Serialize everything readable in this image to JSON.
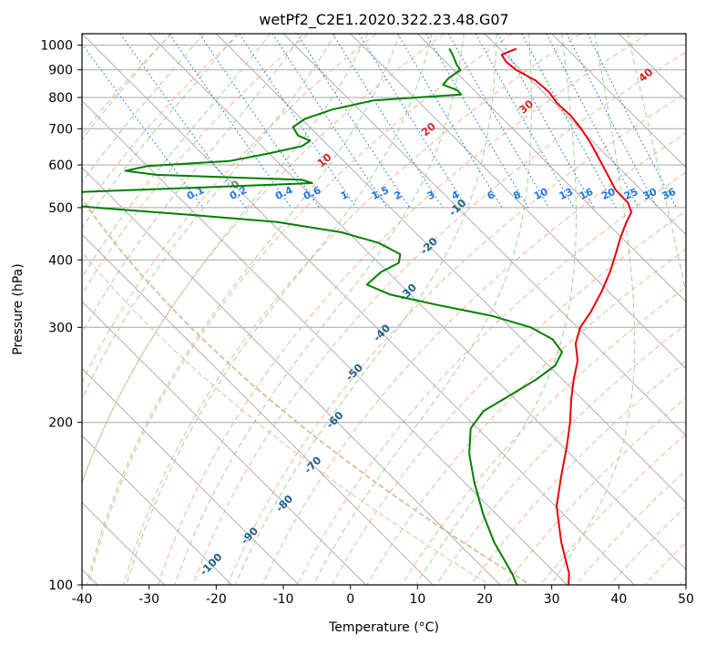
{
  "chart_data": {
    "type": "line",
    "title": "wetPf2_C2E1.2020.322.23.48.G07",
    "xlabel": "Temperature (°C)",
    "ylabel": "Pressure (hPa)",
    "xlim": [
      -40,
      50
    ],
    "ylim": [
      1050,
      100
    ],
    "y_scale": "log",
    "skew_factor": 35,
    "grid": true,
    "x_ticks": [
      -40,
      -30,
      -20,
      -10,
      0,
      10,
      20,
      30,
      40,
      50
    ],
    "y_ticks": [
      1000,
      900,
      800,
      700,
      600,
      500,
      400,
      300,
      200,
      100
    ],
    "colors": {
      "temperature": "#e8000b",
      "dewpoint": "#008000",
      "dry_adiabat": "#f4a582",
      "moist_adiabat": "#8fc98f",
      "mixing_ratio": "#1f77dd",
      "isotherm": "#a9a9a9",
      "saturation": "#d2b48c"
    },
    "series": [
      {
        "key": "temperature",
        "points": [
          [
            985,
            22.5
          ],
          [
            960,
            19.4
          ],
          [
            930,
            19.0
          ],
          [
            900,
            19.3
          ],
          [
            860,
            20.6
          ],
          [
            820,
            20.9
          ],
          [
            780,
            20.4
          ],
          [
            740,
            20.6
          ],
          [
            700,
            20.2
          ],
          [
            660,
            19.5
          ],
          [
            620,
            18.5
          ],
          [
            580,
            17.4
          ],
          [
            540,
            16.2
          ],
          [
            510,
            16.1
          ],
          [
            490,
            15.2
          ],
          [
            470,
            13.0
          ],
          [
            440,
            9.8
          ],
          [
            410,
            6.6
          ],
          [
            380,
            3.1
          ],
          [
            350,
            -1.0
          ],
          [
            320,
            -5.8
          ],
          [
            300,
            -9.6
          ],
          [
            280,
            -12.7
          ],
          [
            260,
            -15.0
          ],
          [
            240,
            -18.4
          ],
          [
            220,
            -21.8
          ],
          [
            200,
            -25.3
          ],
          [
            180,
            -29.5
          ],
          [
            160,
            -34.4
          ],
          [
            140,
            -39.8
          ],
          [
            120,
            -44.5
          ],
          [
            105,
            -48.0
          ],
          [
            100,
            -49.8
          ]
        ]
      },
      {
        "key": "dewpoint",
        "points": [
          [
            985,
            12.5
          ],
          [
            960,
            12.1
          ],
          [
            920,
            11.2
          ],
          [
            900,
            11.0
          ],
          [
            870,
            8.1
          ],
          [
            845,
            6.2
          ],
          [
            825,
            7.5
          ],
          [
            810,
            7.4
          ],
          [
            790,
            -6.5
          ],
          [
            760,
            -14.0
          ],
          [
            730,
            -19.5
          ],
          [
            705,
            -22.5
          ],
          [
            680,
            -23.0
          ],
          [
            665,
            -22.0
          ],
          [
            650,
            -24.0
          ],
          [
            630,
            -30.0
          ],
          [
            610,
            -37.0
          ],
          [
            597,
            -50.0
          ],
          [
            585,
            -54.0
          ],
          [
            575,
            -50.0
          ],
          [
            563,
            -29.0
          ],
          [
            555,
            -28.0
          ],
          [
            545,
            -45.0
          ],
          [
            535,
            -63.0
          ],
          [
            525,
            -77.0
          ],
          [
            515,
            -76.0
          ],
          [
            505,
            -67.0
          ],
          [
            500,
            -64.0
          ],
          [
            485,
            -51.0
          ],
          [
            470,
            -39.0
          ],
          [
            450,
            -31.0
          ],
          [
            430,
            -27.0
          ],
          [
            410,
            -25.5
          ],
          [
            395,
            -27.0
          ],
          [
            380,
            -31.0
          ],
          [
            360,
            -35.0
          ],
          [
            345,
            -33.0
          ],
          [
            330,
            -27.5
          ],
          [
            315,
            -21.0
          ],
          [
            300,
            -17.0
          ],
          [
            285,
            -15.5
          ],
          [
            270,
            -16.0
          ],
          [
            255,
            -19.0
          ],
          [
            240,
            -24.0
          ],
          [
            225,
            -30.0
          ],
          [
            210,
            -36.5
          ],
          [
            195,
            -41.0
          ],
          [
            175,
            -45.0
          ],
          [
            155,
            -48.5
          ],
          [
            135,
            -52.0
          ],
          [
            120,
            -54.5
          ],
          [
            105,
            -56.5
          ],
          [
            100,
            -57.5
          ]
        ]
      }
    ],
    "isotherm_labels": [
      "-100",
      "-90",
      "-80",
      "-70",
      "-60",
      "-50",
      "-40",
      "-30",
      "-20",
      "-10"
    ],
    "mixing_ratio_labels": [
      "0.1",
      "0.2",
      "0.4",
      "0.6",
      "1",
      "1.5",
      "2",
      "3",
      "4",
      "6",
      "8",
      "10",
      "13",
      "16",
      "20",
      "25",
      "30",
      "36"
    ],
    "adiabat_labels": [
      "0",
      "10",
      "20",
      "30",
      "40"
    ]
  }
}
